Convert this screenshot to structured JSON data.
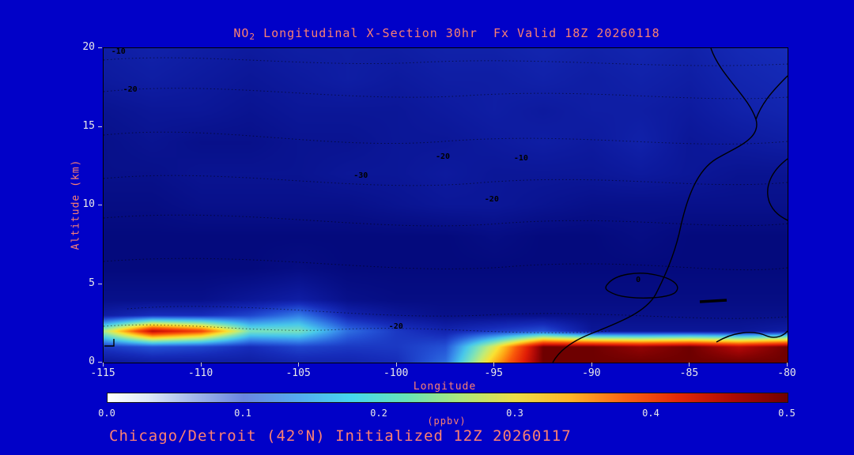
{
  "title": {
    "prefix": "NO",
    "sub": "2",
    "rest": " Longitudinal X-Section 30hr  Fx Valid 18Z 20260118"
  },
  "caption": "Chicago/Detroit (42°N) Initialized 12Z 20260117",
  "axes": {
    "x": {
      "label": "Longitude",
      "min": -115,
      "max": -80,
      "ticks": [
        -115,
        -110,
        -105,
        -100,
        -95,
        -90,
        -85,
        -80
      ]
    },
    "y": {
      "label": "Altitude (km)",
      "min": 0,
      "max": 20,
      "ticks": [
        0,
        5,
        10,
        15,
        20
      ]
    }
  },
  "colorbar": {
    "label": "(ppbv)",
    "min": 0.0,
    "max": 0.5,
    "ticks": [
      "0.0",
      "0.1",
      "0.2",
      "0.3",
      "0.4",
      "0.5"
    ],
    "stops": [
      {
        "p": 0.0,
        "c": "#ffffff"
      },
      {
        "p": 0.06,
        "c": "#dde8f8"
      },
      {
        "p": 0.12,
        "c": "#a8bcec"
      },
      {
        "p": 0.2,
        "c": "#6a86e0"
      },
      {
        "p": 0.28,
        "c": "#55aaf0"
      },
      {
        "p": 0.36,
        "c": "#45d6ee"
      },
      {
        "p": 0.44,
        "c": "#66e2b8"
      },
      {
        "p": 0.52,
        "c": "#ace87c"
      },
      {
        "p": 0.6,
        "c": "#ecdc48"
      },
      {
        "p": 0.68,
        "c": "#ffb428"
      },
      {
        "p": 0.76,
        "c": "#fa6414"
      },
      {
        "p": 0.84,
        "c": "#e42808"
      },
      {
        "p": 0.92,
        "c": "#ad0a04"
      },
      {
        "p": 1.0,
        "c": "#700000"
      }
    ]
  },
  "colors": {
    "background": "#0101c8",
    "title_text": "#fa8072",
    "tick_text": "#e9e9e9",
    "frame": "#000000",
    "contour": "#000000"
  },
  "chart_data": {
    "type": "heatmap",
    "title": "NO2 Longitudinal X-Section 30hr Fx Valid 18Z 20260118",
    "xlabel": "Longitude",
    "ylabel": "Altitude (km)",
    "units": "ppbv",
    "xlim": [
      -115,
      -80
    ],
    "ylim": [
      0,
      20
    ],
    "value_range": [
      0.0,
      0.5
    ],
    "x": [
      -115,
      -112.5,
      -110,
      -107.5,
      -105,
      -102.5,
      -100,
      -97.5,
      -95,
      -92.5,
      -90,
      -87.5,
      -85,
      -82.5,
      -80
    ],
    "y": [
      0,
      1,
      2,
      3,
      4,
      6,
      8,
      10,
      12,
      14,
      16,
      18,
      20
    ],
    "values": [
      [
        0.04,
        0.05,
        0.05,
        0.05,
        0.06,
        0.06,
        0.07,
        0.12,
        0.33,
        0.5,
        0.5,
        0.5,
        0.5,
        0.5,
        0.5
      ],
      [
        0.08,
        0.1,
        0.09,
        0.07,
        0.09,
        0.08,
        0.08,
        0.1,
        0.28,
        0.5,
        0.5,
        0.48,
        0.5,
        0.46,
        0.5
      ],
      [
        0.25,
        0.46,
        0.4,
        0.22,
        0.22,
        0.12,
        0.08,
        0.06,
        0.08,
        0.1,
        0.04,
        0.04,
        0.04,
        0.04,
        0.05
      ],
      [
        0.05,
        0.07,
        0.07,
        0.09,
        0.13,
        0.06,
        0.04,
        0.03,
        0.03,
        0.03,
        0.03,
        0.03,
        0.03,
        0.03,
        0.03
      ],
      [
        0.03,
        0.03,
        0.03,
        0.04,
        0.05,
        0.03,
        0.025,
        0.025,
        0.025,
        0.025,
        0.025,
        0.025,
        0.025,
        0.025,
        0.025
      ],
      [
        0.02,
        0.02,
        0.02,
        0.02,
        0.025,
        0.02,
        0.02,
        0.02,
        0.02,
        0.02,
        0.02,
        0.02,
        0.02,
        0.02,
        0.02
      ],
      [
        0.02,
        0.02,
        0.02,
        0.02,
        0.02,
        0.02,
        0.02,
        0.02,
        0.025,
        0.02,
        0.02,
        0.025,
        0.02,
        0.02,
        0.02
      ],
      [
        0.025,
        0.025,
        0.03,
        0.03,
        0.03,
        0.03,
        0.035,
        0.04,
        0.04,
        0.035,
        0.03,
        0.03,
        0.03,
        0.03,
        0.03
      ],
      [
        0.03,
        0.03,
        0.035,
        0.035,
        0.035,
        0.04,
        0.04,
        0.045,
        0.04,
        0.04,
        0.04,
        0.045,
        0.04,
        0.035,
        0.035
      ],
      [
        0.03,
        0.035,
        0.03,
        0.03,
        0.035,
        0.035,
        0.04,
        0.04,
        0.045,
        0.05,
        0.045,
        0.055,
        0.04,
        0.045,
        0.05
      ],
      [
        0.035,
        0.04,
        0.04,
        0.035,
        0.04,
        0.04,
        0.04,
        0.045,
        0.05,
        0.045,
        0.05,
        0.05,
        0.045,
        0.055,
        0.06
      ],
      [
        0.045,
        0.05,
        0.045,
        0.04,
        0.045,
        0.05,
        0.045,
        0.05,
        0.05,
        0.055,
        0.05,
        0.055,
        0.05,
        0.06,
        0.065
      ],
      [
        0.05,
        0.055,
        0.05,
        0.045,
        0.05,
        0.05,
        0.05,
        0.055,
        0.055,
        0.06,
        0.055,
        0.06,
        0.055,
        0.065,
        0.07
      ]
    ],
    "colormap": [
      {
        "v": 0.0,
        "c": [
          0,
          5,
          95
        ]
      },
      {
        "v": 0.02,
        "c": [
          4,
          10,
          125
        ]
      },
      {
        "v": 0.045,
        "c": [
          13,
          26,
          158
        ]
      },
      {
        "v": 0.07,
        "c": [
          22,
          44,
          186
        ]
      },
      {
        "v": 0.1,
        "c": [
          36,
          82,
          214
        ]
      },
      {
        "v": 0.14,
        "c": [
          56,
          140,
          235
        ]
      },
      {
        "v": 0.18,
        "c": [
          72,
          200,
          235
        ]
      },
      {
        "v": 0.22,
        "c": [
          122,
          226,
          188
        ]
      },
      {
        "v": 0.26,
        "c": [
          192,
          236,
          120
        ]
      },
      {
        "v": 0.3,
        "c": [
          250,
          226,
          50
        ]
      },
      {
        "v": 0.34,
        "c": [
          255,
          165,
          20
        ]
      },
      {
        "v": 0.38,
        "c": [
          250,
          90,
          10
        ]
      },
      {
        "v": 0.43,
        "c": [
          226,
          30,
          6
        ]
      },
      {
        "v": 0.47,
        "c": [
          166,
          6,
          6
        ]
      },
      {
        "v": 0.5,
        "c": [
          110,
          0,
          0
        ]
      }
    ],
    "contour_labels": [
      {
        "lon": -114.2,
        "alt": 19.7,
        "text": "-10"
      },
      {
        "lon": -113.6,
        "alt": 17.3,
        "text": "-20"
      },
      {
        "lon": -101.8,
        "alt": 11.8,
        "text": "-30"
      },
      {
        "lon": -97.6,
        "alt": 13.0,
        "text": "-20"
      },
      {
        "lon": -93.6,
        "alt": 12.9,
        "text": "-10"
      },
      {
        "lon": -95.1,
        "alt": 10.3,
        "text": "-20"
      },
      {
        "lon": -100.0,
        "alt": 2.2,
        "text": "-20"
      },
      {
        "lon": -87.6,
        "alt": 5.2,
        "text": "0"
      }
    ]
  }
}
